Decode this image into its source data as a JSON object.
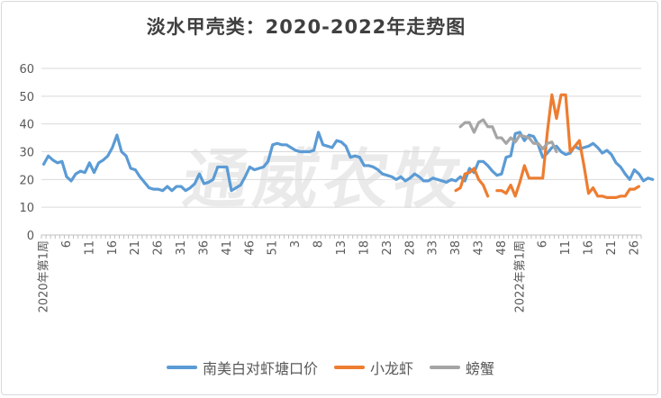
{
  "colors": {
    "shrimp": "#5b9bd5",
    "crayfish": "#ed7d31",
    "crab": "#a5a5a5",
    "grid": "#d9d9d9",
    "axis": "#bfbfbf"
  },
  "watermark": "通威农牧",
  "chart_data": {
    "type": "line",
    "title": "淡水甲壳类：2020-2022年走势图",
    "xlabel": "",
    "ylabel": "",
    "ylim": [
      0,
      60
    ],
    "yticks": [
      0,
      10,
      20,
      30,
      40,
      50,
      60
    ],
    "grid": true,
    "legend_position": "bottom",
    "x_tick_labels": [
      {
        "index": 1,
        "label": "2020年第1周"
      },
      {
        "index": 6,
        "label": "6"
      },
      {
        "index": 11,
        "label": "11"
      },
      {
        "index": 16,
        "label": "16"
      },
      {
        "index": 21,
        "label": "21"
      },
      {
        "index": 26,
        "label": "26"
      },
      {
        "index": 31,
        "label": "31"
      },
      {
        "index": 36,
        "label": "36"
      },
      {
        "index": 41,
        "label": "41"
      },
      {
        "index": 46,
        "label": "46"
      },
      {
        "index": 51,
        "label": "51"
      },
      {
        "index": 56,
        "label": "3"
      },
      {
        "index": 61,
        "label": "8"
      },
      {
        "index": 66,
        "label": "13"
      },
      {
        "index": 71,
        "label": "18"
      },
      {
        "index": 76,
        "label": "23"
      },
      {
        "index": 81,
        "label": "28"
      },
      {
        "index": 86,
        "label": "33"
      },
      {
        "index": 91,
        "label": "38"
      },
      {
        "index": 96,
        "label": "43"
      },
      {
        "index": 101,
        "label": "48"
      },
      {
        "index": 105,
        "label": "2022年第1周"
      },
      {
        "index": 110,
        "label": "6"
      },
      {
        "index": 115,
        "label": "11"
      },
      {
        "index": 120,
        "label": "16"
      },
      {
        "index": 125,
        "label": "21"
      },
      {
        "index": 130,
        "label": "26"
      }
    ],
    "series": [
      {
        "name": "南美白对虾塘口价",
        "color": "#5b9bd5",
        "x_start": 1,
        "values": [
          25.5,
          28.5,
          27,
          26,
          26.5,
          21,
          19.5,
          22,
          23,
          22.5,
          26,
          22.5,
          26,
          27,
          28.5,
          31.5,
          36,
          30,
          28.5,
          24,
          23.5,
          21,
          19,
          17,
          16.5,
          16.5,
          16,
          17.5,
          16,
          17.5,
          17.5,
          16,
          17,
          18.5,
          22,
          18.5,
          19,
          20,
          24.5,
          24.5,
          24.5,
          16,
          17,
          18,
          21,
          24.5,
          23.5,
          24,
          24.5,
          26.5,
          32.5,
          33,
          32.5,
          32.5,
          31.5,
          30.5,
          30,
          30,
          30,
          30.5,
          37,
          32.5,
          32,
          31.5,
          34,
          33.5,
          32,
          28,
          28.5,
          28,
          25,
          25,
          24.5,
          23.5,
          22,
          21.5,
          21,
          20,
          21,
          19.5,
          20.5,
          22,
          21,
          19.5,
          19.5,
          20.5,
          20,
          19.5,
          19,
          20,
          19.5,
          21,
          19.5,
          24,
          22.5,
          26.5,
          26.5,
          25,
          23,
          21.5,
          22,
          28,
          28.5,
          36.5,
          37,
          34,
          36,
          35.5,
          32.5,
          28,
          29.5,
          31.5,
          32,
          30,
          29,
          29.5,
          32,
          31,
          31.5,
          32,
          33,
          31.5,
          29.5,
          30.5,
          29,
          26,
          24.5,
          22,
          20,
          23.5,
          22,
          19.5,
          20.5,
          20
        ]
      },
      {
        "name": "小龙虾",
        "color": "#ed7d31",
        "segments": [
          {
            "x_start": 91,
            "values": [
              16,
              17,
              22,
              22.5,
              24,
              20,
              18,
              14
            ]
          },
          {
            "x_start": 100,
            "values": [
              16,
              16,
              15,
              18,
              14,
              19,
              25,
              20.5,
              20.5,
              20.5,
              20.5,
              37,
              50.5,
              42,
              50.5,
              50.5,
              30,
              32,
              34,
              25,
              15,
              17,
              14,
              14,
              13.5,
              13.5,
              13.5,
              14,
              14,
              16.5,
              16.5,
              17.5
            ]
          }
        ]
      },
      {
        "name": "螃蟹",
        "color": "#a5a5a5",
        "x_start": 92,
        "values": [
          39,
          40.5,
          40.5,
          37,
          40.5,
          41.5,
          39,
          39,
          35,
          35,
          33,
          35,
          33.5,
          36,
          35.5,
          35,
          33,
          33,
          31,
          33,
          33.5,
          30
        ]
      }
    ]
  }
}
